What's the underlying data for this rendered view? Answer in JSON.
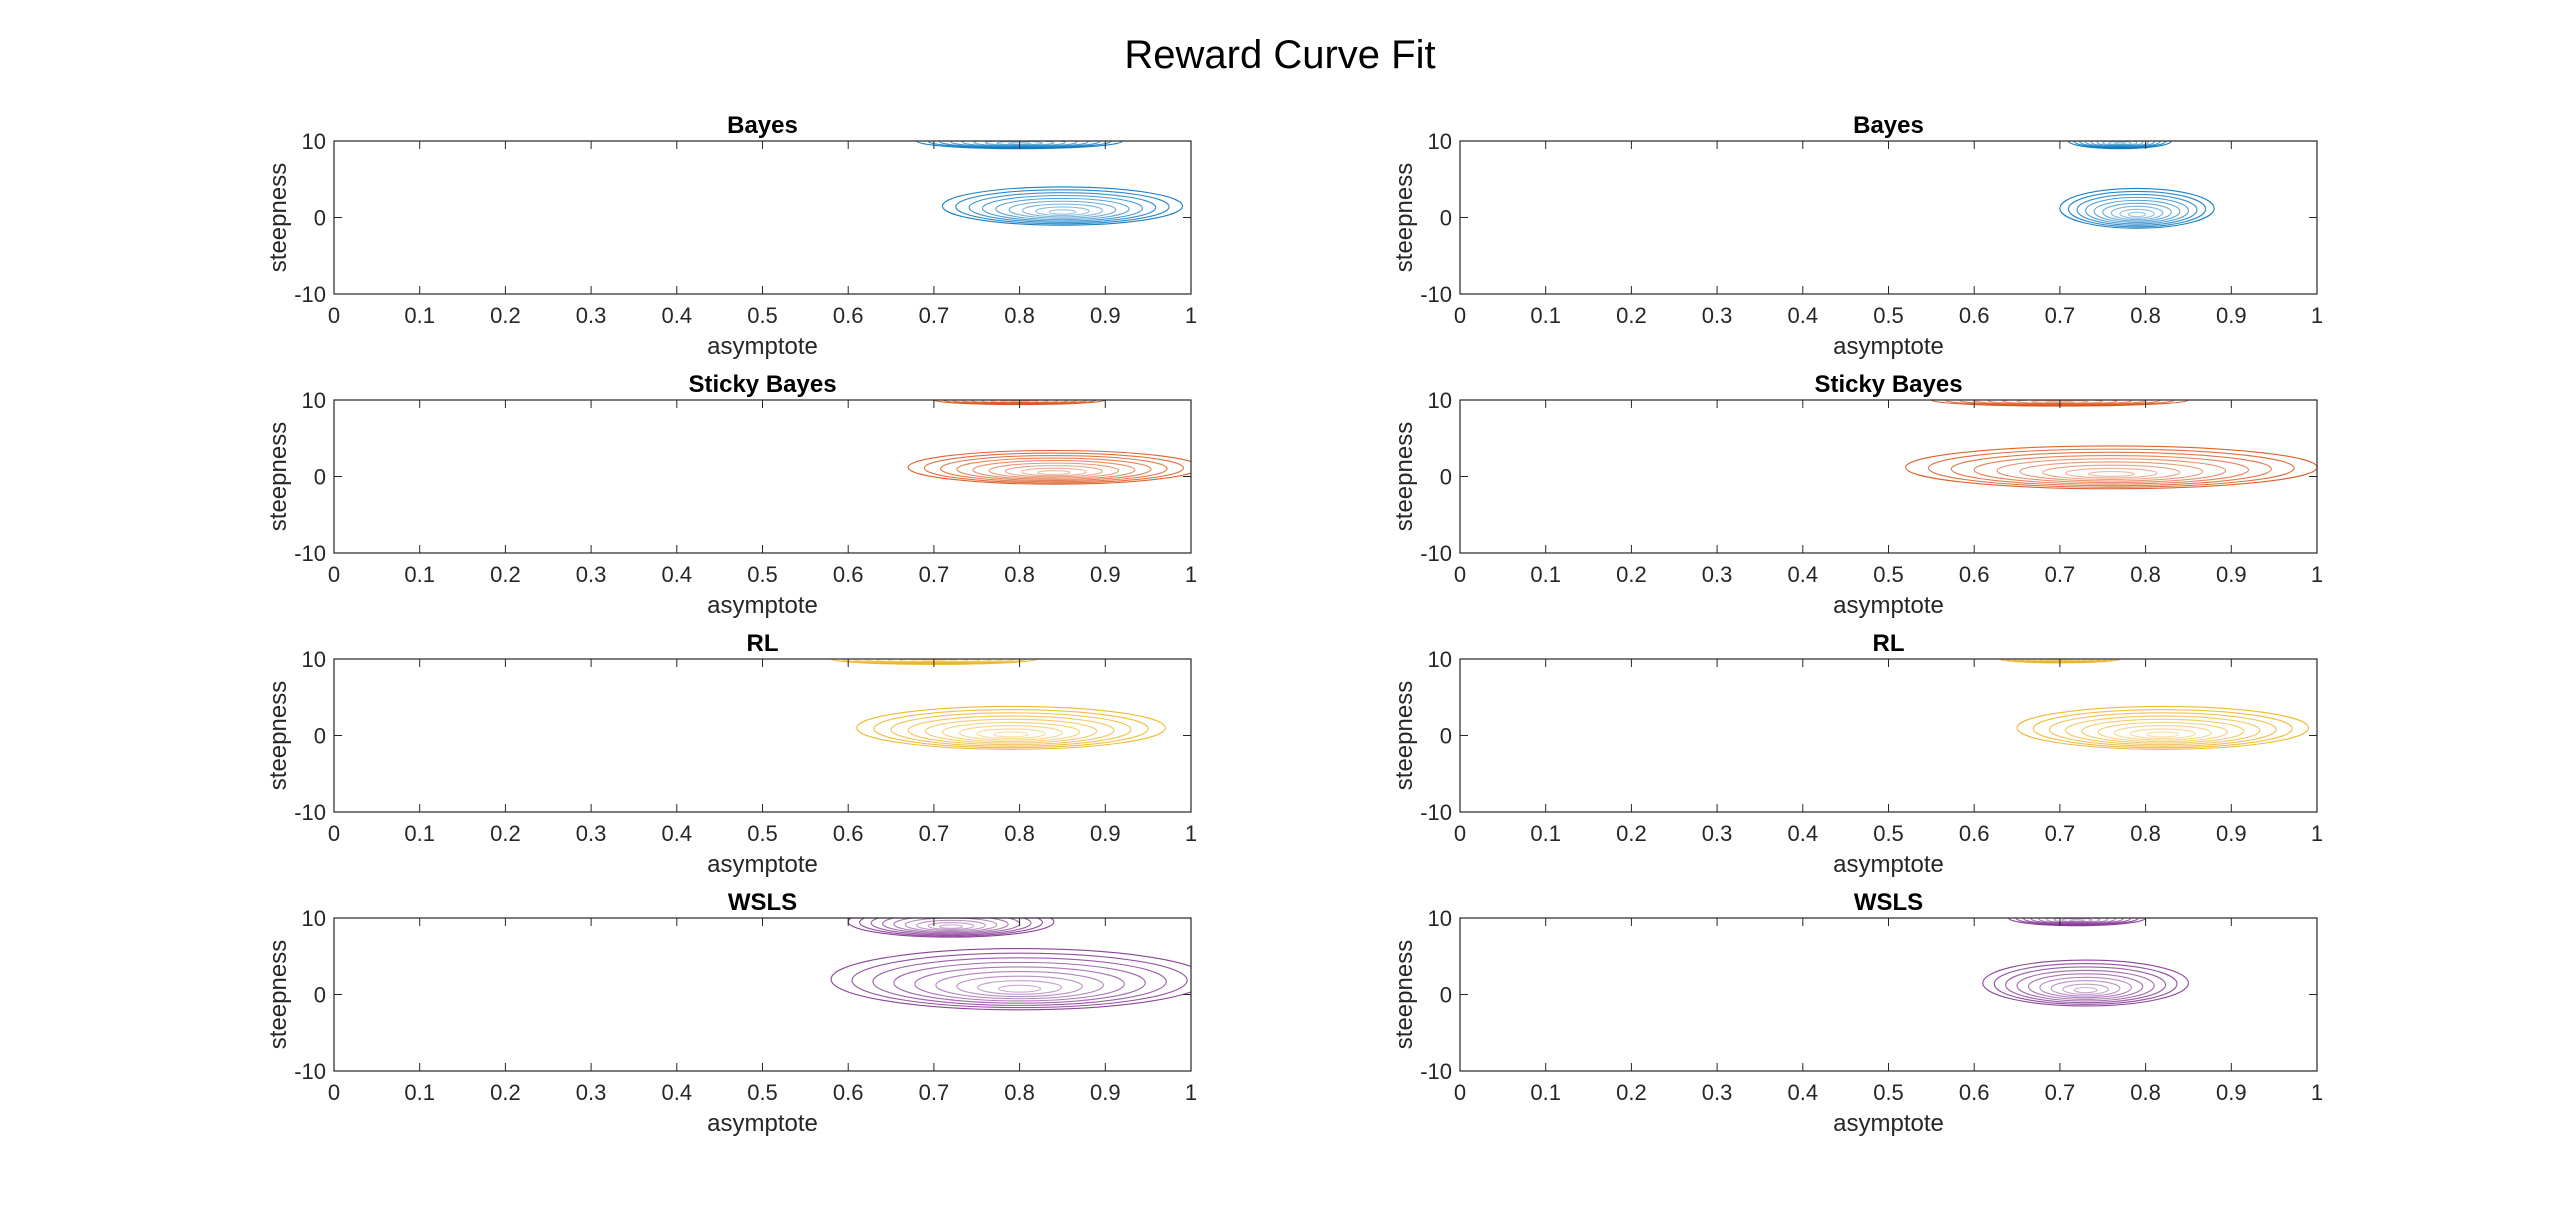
{
  "figure": {
    "title": "Reward Curve Fit"
  },
  "colors": {
    "blue": "#0072BD",
    "orange": "#D95319",
    "yellow": "#EDB120",
    "purple": "#7E2F8E",
    "axis": "#262626"
  },
  "chart_data": [
    {
      "type": "contour",
      "title": "Bayes",
      "xlabel": "asymptote",
      "ylabel": "steepness",
      "xlim": [
        0,
        1
      ],
      "ylim": [
        -10,
        10
      ],
      "xticks": [
        "0",
        "0.1",
        "0.2",
        "0.3",
        "0.4",
        "0.5",
        "0.6",
        "0.7",
        "0.8",
        "0.9",
        "1"
      ],
      "yticks": [
        "10",
        "0",
        "-10"
      ],
      "color": "blue",
      "blobs": [
        {
          "cx": 0.85,
          "cy": 1.5,
          "rx": 0.14,
          "ry": 2.5
        },
        {
          "cx": 0.8,
          "cy": 10,
          "rx": 0.12,
          "ry": 1
        }
      ]
    },
    {
      "type": "contour",
      "title": "Bayes",
      "xlabel": "asymptote",
      "ylabel": "steepness",
      "xlim": [
        0,
        1
      ],
      "ylim": [
        -10,
        10
      ],
      "xticks": [
        "0",
        "0.1",
        "0.2",
        "0.3",
        "0.4",
        "0.5",
        "0.6",
        "0.7",
        "0.8",
        "0.9",
        "1"
      ],
      "yticks": [
        "10",
        "0",
        "-10"
      ],
      "color": "blue",
      "blobs": [
        {
          "cx": 0.79,
          "cy": 1.2,
          "rx": 0.09,
          "ry": 2.6
        },
        {
          "cx": 0.77,
          "cy": 10,
          "rx": 0.06,
          "ry": 1
        }
      ]
    },
    {
      "type": "contour",
      "title": "Sticky Bayes",
      "xlabel": "asymptote",
      "ylabel": "steepness",
      "xlim": [
        0,
        1
      ],
      "ylim": [
        -10,
        10
      ],
      "xticks": [
        "0",
        "0.1",
        "0.2",
        "0.3",
        "0.4",
        "0.5",
        "0.6",
        "0.7",
        "0.8",
        "0.9",
        "1"
      ],
      "yticks": [
        "10",
        "0",
        "-10"
      ],
      "color": "orange",
      "blobs": [
        {
          "cx": 0.84,
          "cy": 1.2,
          "rx": 0.17,
          "ry": 2.2
        },
        {
          "cx": 0.8,
          "cy": 10,
          "rx": 0.1,
          "ry": 0.6
        }
      ]
    },
    {
      "type": "contour",
      "title": "Sticky Bayes",
      "xlabel": "asymptote",
      "ylabel": "steepness",
      "xlim": [
        0,
        1
      ],
      "ylim": [
        -10,
        10
      ],
      "xticks": [
        "0",
        "0.1",
        "0.2",
        "0.3",
        "0.4",
        "0.5",
        "0.6",
        "0.7",
        "0.8",
        "0.9",
        "1"
      ],
      "yticks": [
        "10",
        "0",
        "-10"
      ],
      "color": "orange",
      "blobs": [
        {
          "cx": 0.76,
          "cy": 1.2,
          "rx": 0.24,
          "ry": 2.8
        },
        {
          "cx": 0.7,
          "cy": 10,
          "rx": 0.15,
          "ry": 0.8
        }
      ]
    },
    {
      "type": "contour",
      "title": "RL",
      "xlabel": "asymptote",
      "ylabel": "steepness",
      "xlim": [
        0,
        1
      ],
      "ylim": [
        -10,
        10
      ],
      "xticks": [
        "0",
        "0.1",
        "0.2",
        "0.3",
        "0.4",
        "0.5",
        "0.6",
        "0.7",
        "0.8",
        "0.9",
        "1"
      ],
      "yticks": [
        "10",
        "0",
        "-10"
      ],
      "color": "yellow",
      "blobs": [
        {
          "cx": 0.79,
          "cy": 1.0,
          "rx": 0.18,
          "ry": 2.8
        },
        {
          "cx": 0.7,
          "cy": 10,
          "rx": 0.12,
          "ry": 0.7
        }
      ]
    },
    {
      "type": "contour",
      "title": "RL",
      "xlabel": "asymptote",
      "ylabel": "steepness",
      "xlim": [
        0,
        1
      ],
      "ylim": [
        -10,
        10
      ],
      "xticks": [
        "0",
        "0.1",
        "0.2",
        "0.3",
        "0.4",
        "0.5",
        "0.6",
        "0.7",
        "0.8",
        "0.9",
        "1"
      ],
      "yticks": [
        "10",
        "0",
        "-10"
      ],
      "color": "yellow",
      "blobs": [
        {
          "cx": 0.82,
          "cy": 1.0,
          "rx": 0.17,
          "ry": 2.8
        },
        {
          "cx": 0.7,
          "cy": 10,
          "rx": 0.07,
          "ry": 0.5
        }
      ]
    },
    {
      "type": "contour",
      "title": "WSLS",
      "xlabel": "asymptote",
      "ylabel": "steepness",
      "xlim": [
        0,
        1
      ],
      "ylim": [
        -10,
        10
      ],
      "xticks": [
        "0",
        "0.1",
        "0.2",
        "0.3",
        "0.4",
        "0.5",
        "0.6",
        "0.7",
        "0.8",
        "0.9",
        "1"
      ],
      "yticks": [
        "10",
        "0",
        "-10"
      ],
      "color": "purple",
      "blobs": [
        {
          "cx": 0.8,
          "cy": 2.0,
          "rx": 0.22,
          "ry": 4.0
        },
        {
          "cx": 0.72,
          "cy": 9.5,
          "rx": 0.12,
          "ry": 2.0
        }
      ]
    },
    {
      "type": "contour",
      "title": "WSLS",
      "xlabel": "asymptote",
      "ylabel": "steepness",
      "xlim": [
        0,
        1
      ],
      "ylim": [
        -10,
        10
      ],
      "xticks": [
        "0",
        "0.1",
        "0.2",
        "0.3",
        "0.4",
        "0.5",
        "0.6",
        "0.7",
        "0.8",
        "0.9",
        "1"
      ],
      "yticks": [
        "10",
        "0",
        "-10"
      ],
      "color": "purple",
      "blobs": [
        {
          "cx": 0.73,
          "cy": 1.5,
          "rx": 0.12,
          "ry": 3.0
        },
        {
          "cx": 0.72,
          "cy": 10,
          "rx": 0.08,
          "ry": 1.0
        }
      ]
    }
  ]
}
